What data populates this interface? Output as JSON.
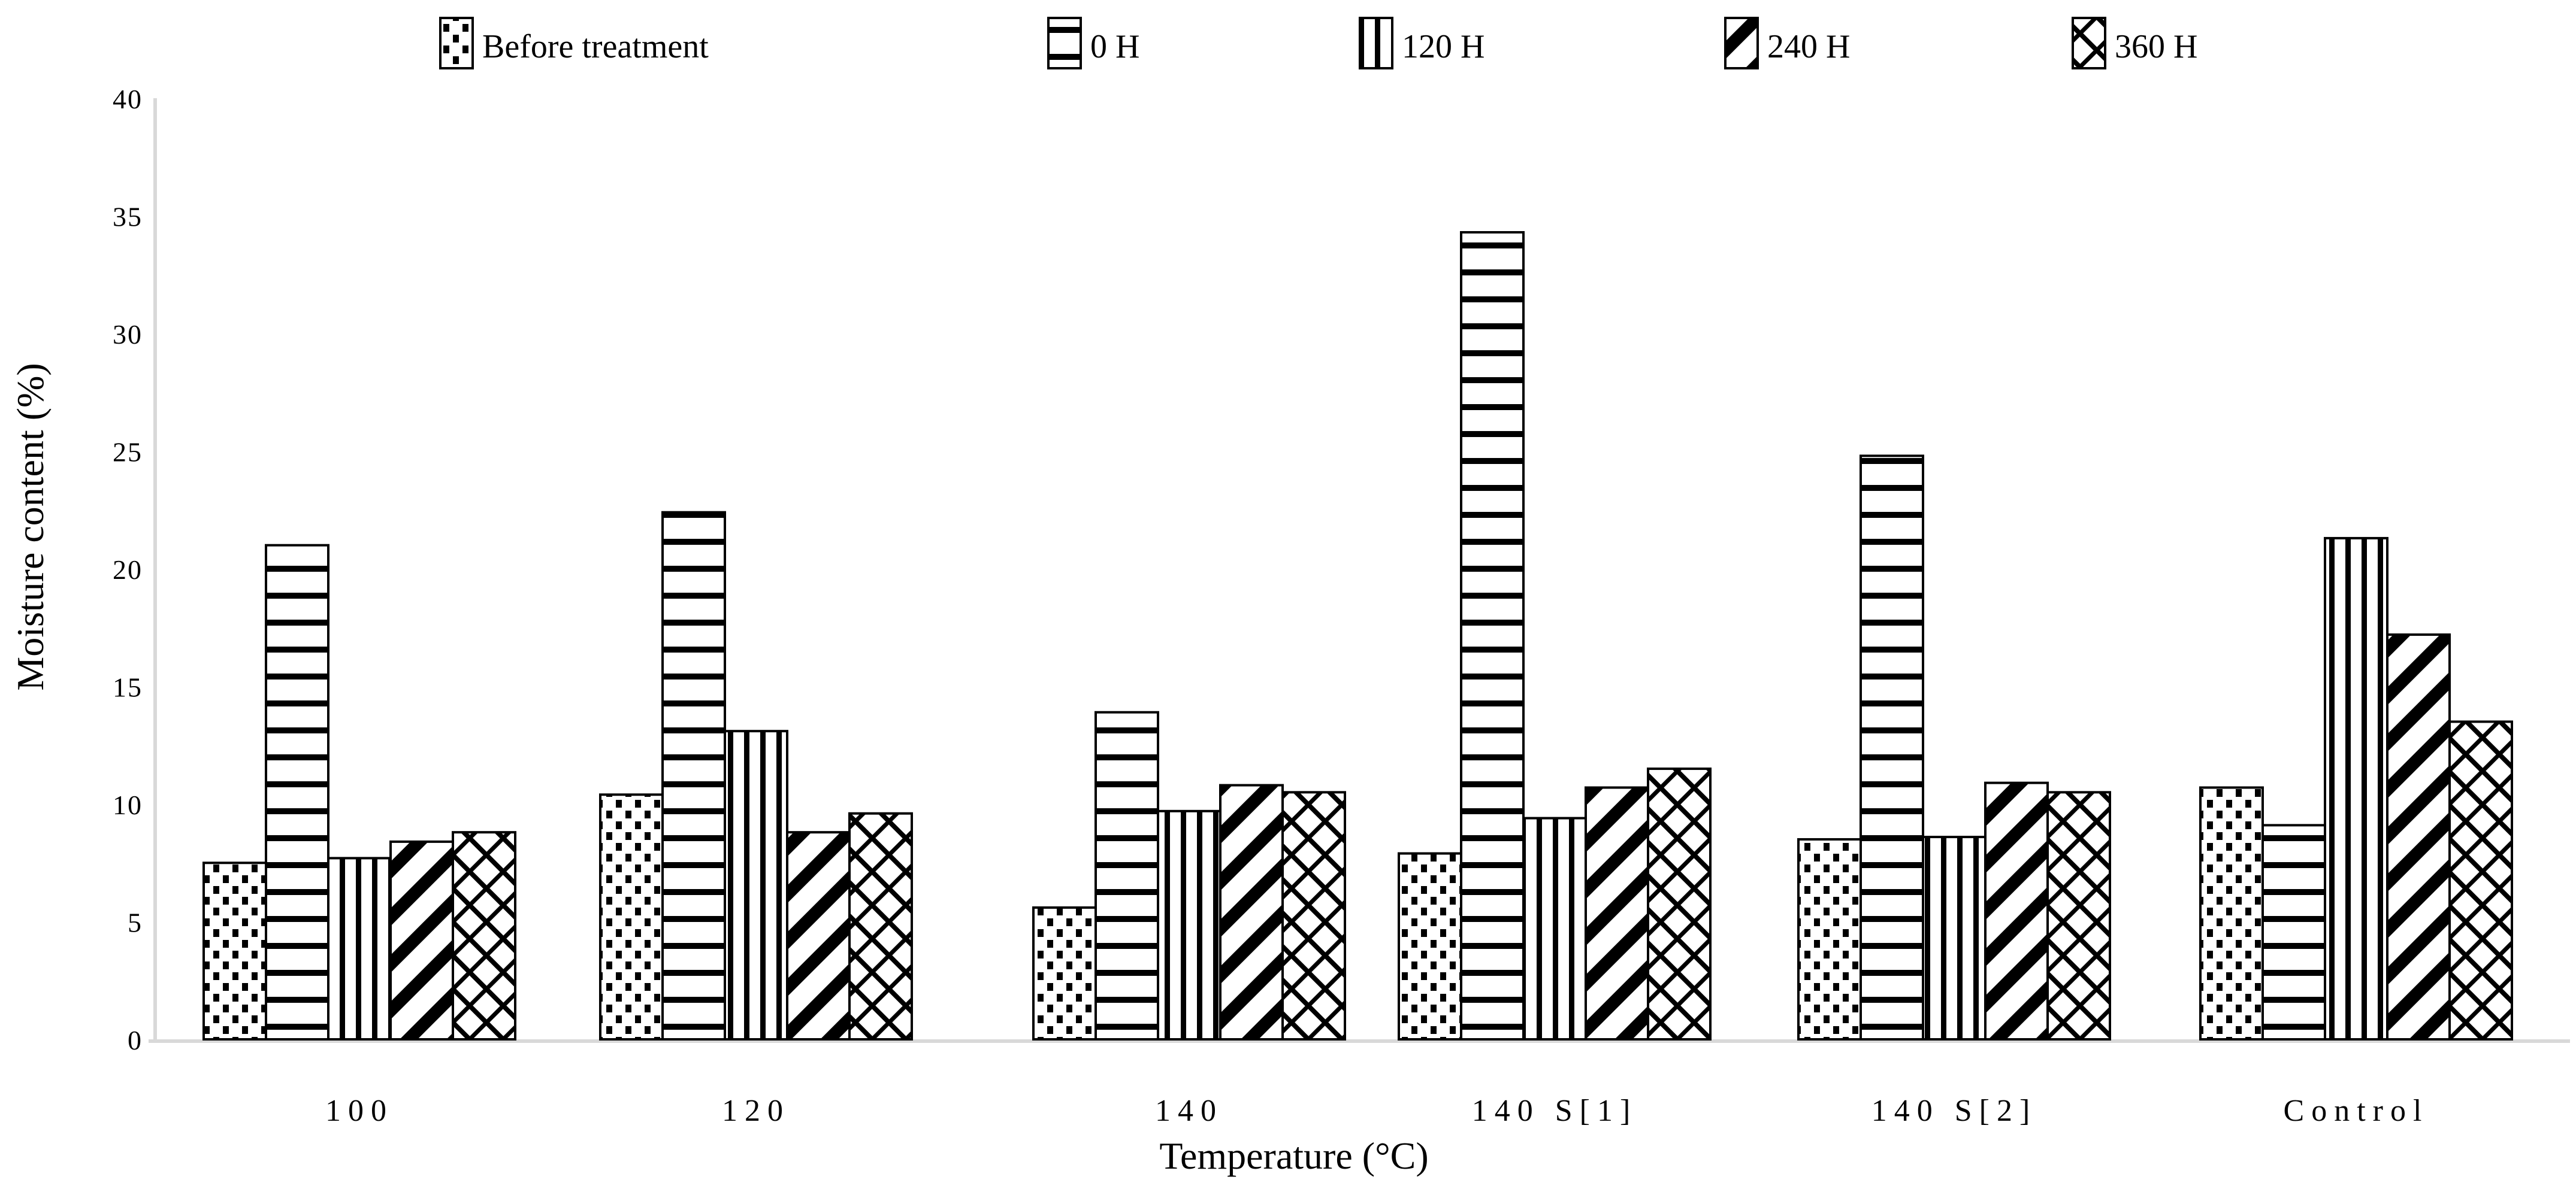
{
  "chart_data": {
    "type": "bar",
    "title": "",
    "xlabel": "Temperature (°C)",
    "ylabel": "Moisture content (%)",
    "ylim": [
      0,
      40
    ],
    "ytick_step": 5,
    "grid": false,
    "legend_position": "top",
    "axis_color": "#d9d9d9",
    "bar_border_color": "#000000",
    "bar_fill_background": "#ffffff",
    "categories": [
      "100",
      "120",
      "140",
      "140 S[1]",
      "140 S[2]",
      "Control"
    ],
    "series": [
      {
        "name": "Before treatment",
        "pattern": "dots",
        "values": [
          7.5,
          10.4,
          5.6,
          7.9,
          8.5,
          10.7
        ]
      },
      {
        "name": "0 H",
        "pattern": "horizontal-lines",
        "values": [
          21.0,
          22.4,
          13.9,
          34.3,
          24.8,
          9.1
        ]
      },
      {
        "name": "120 H",
        "pattern": "vertical-lines",
        "values": [
          7.7,
          13.1,
          9.7,
          9.4,
          8.6,
          21.3
        ]
      },
      {
        "name": "240 H",
        "pattern": "diagonal-stripes",
        "values": [
          8.4,
          8.8,
          10.8,
          10.7,
          10.9,
          17.2
        ]
      },
      {
        "name": "360 H",
        "pattern": "diagonal-crosshatch",
        "values": [
          8.8,
          9.6,
          10.5,
          11.5,
          10.5,
          13.5
        ]
      }
    ],
    "legend": [
      {
        "label": "Before treatment",
        "pattern": "dots"
      },
      {
        "label": "0 H",
        "pattern": "horizontal-lines"
      },
      {
        "label": "120 H",
        "pattern": "vertical-lines"
      },
      {
        "label": "240 H",
        "pattern": "diagonal-stripes"
      },
      {
        "label": "360 H",
        "pattern": "diagonal-crosshatch"
      }
    ]
  }
}
